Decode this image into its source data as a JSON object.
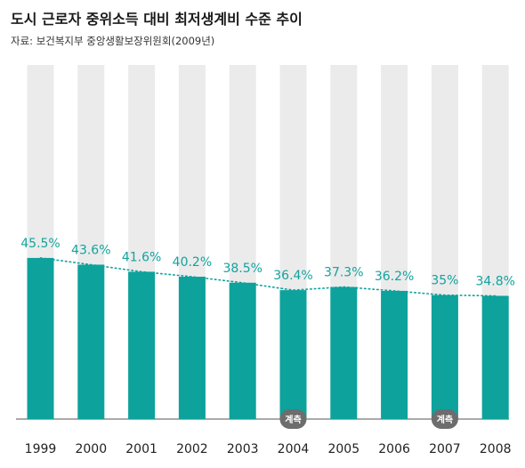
{
  "header": {
    "title": "도시 근로자 중위소득 대비 최저생계비 수준 추이",
    "source": "자료: 보건복지부 중앙생활보장위원회(2009년)"
  },
  "chart_data": {
    "type": "bar",
    "title": "도시 근로자 중위소득 대비 최저생계비 수준 추이",
    "categories": [
      "1999",
      "2000",
      "2001",
      "2002",
      "2003",
      "2004",
      "2005",
      "2006",
      "2007",
      "2008"
    ],
    "values": [
      45.5,
      43.6,
      41.6,
      40.2,
      38.5,
      36.4,
      37.3,
      36.2,
      35,
      34.8
    ],
    "value_labels": [
      "45.5%",
      "43.6%",
      "41.6%",
      "40.2%",
      "38.5%",
      "36.4%",
      "37.3%",
      "36.2%",
      "35%",
      "34.8%"
    ],
    "unit": "%",
    "ylim": [
      0,
      100
    ],
    "trend_line": true,
    "grid": false,
    "badges": [
      {
        "category": "2004",
        "label": "계측"
      },
      {
        "category": "2007",
        "label": "계측"
      }
    ],
    "colors": {
      "bar": "#0da29c",
      "background_bar": "#ebebeb",
      "label": "#13a39d",
      "badge": "#6d6d6d"
    }
  }
}
